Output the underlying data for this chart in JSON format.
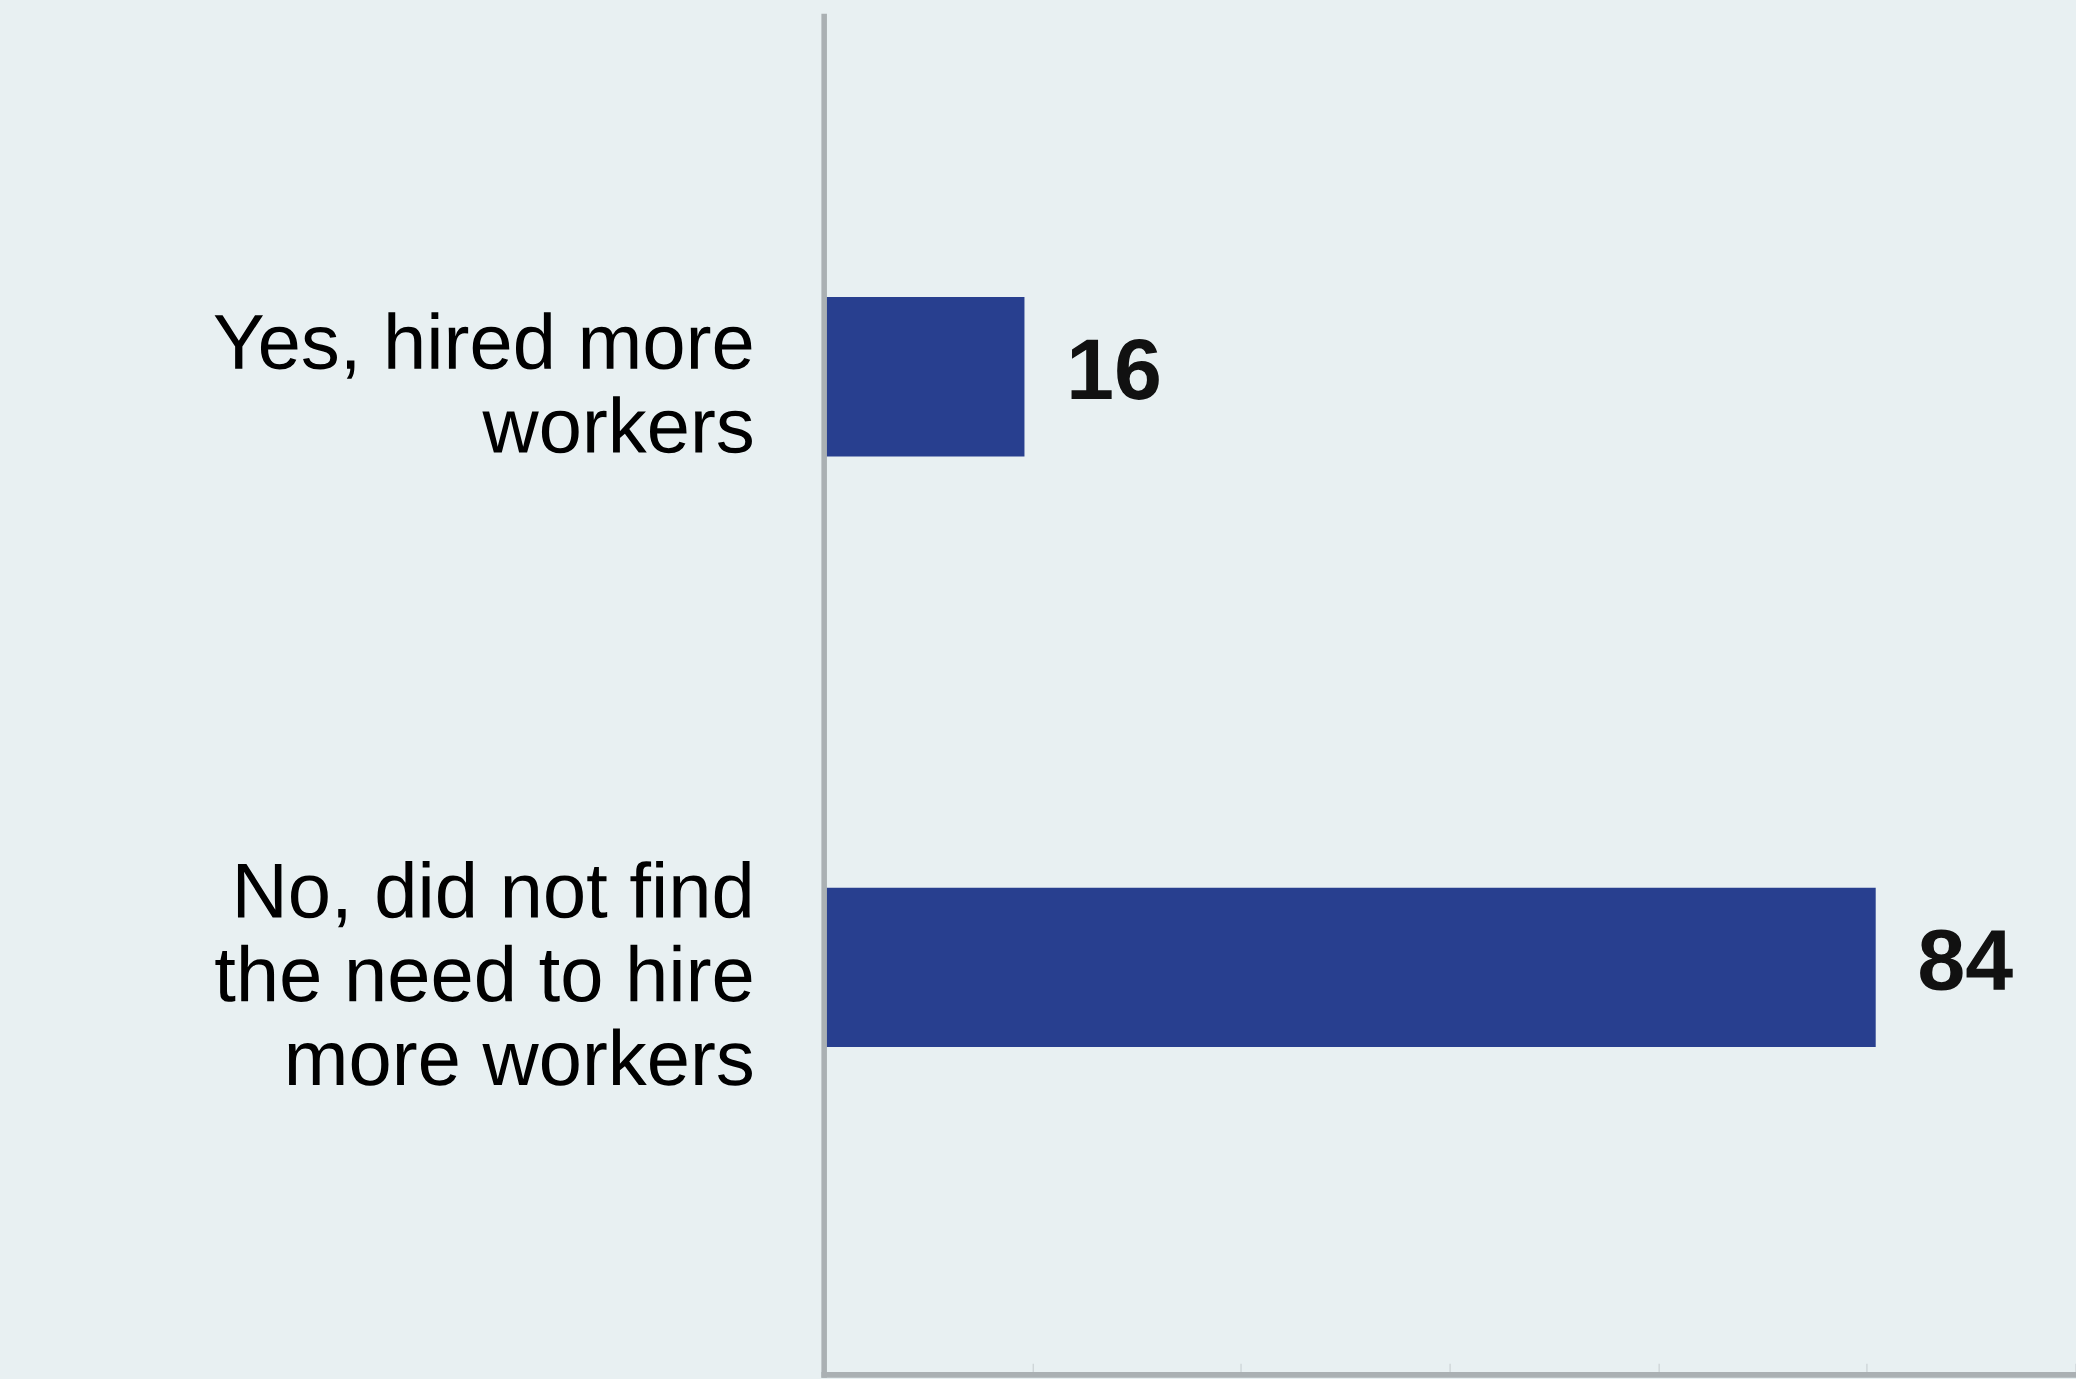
{
  "chart_data": {
    "type": "bar",
    "orientation": "horizontal",
    "categories": [
      "Yes, hired more\nworkers",
      "No, did not find\nthe need to hire\nmore workers"
    ],
    "values": [
      16,
      84
    ],
    "color": "#283f8f",
    "data_labels": true,
    "xlim": [
      0,
      100
    ],
    "xticks": [
      {
        "value": 16.7,
        "label": null
      },
      {
        "value": 33.3,
        "label": null
      },
      {
        "value": 50,
        "label": null
      },
      {
        "value": 66.7,
        "label": null
      },
      {
        "value": 83.3,
        "label": null
      },
      {
        "value": 100,
        "label": null
      }
    ],
    "grid": false,
    "legend": false
  }
}
